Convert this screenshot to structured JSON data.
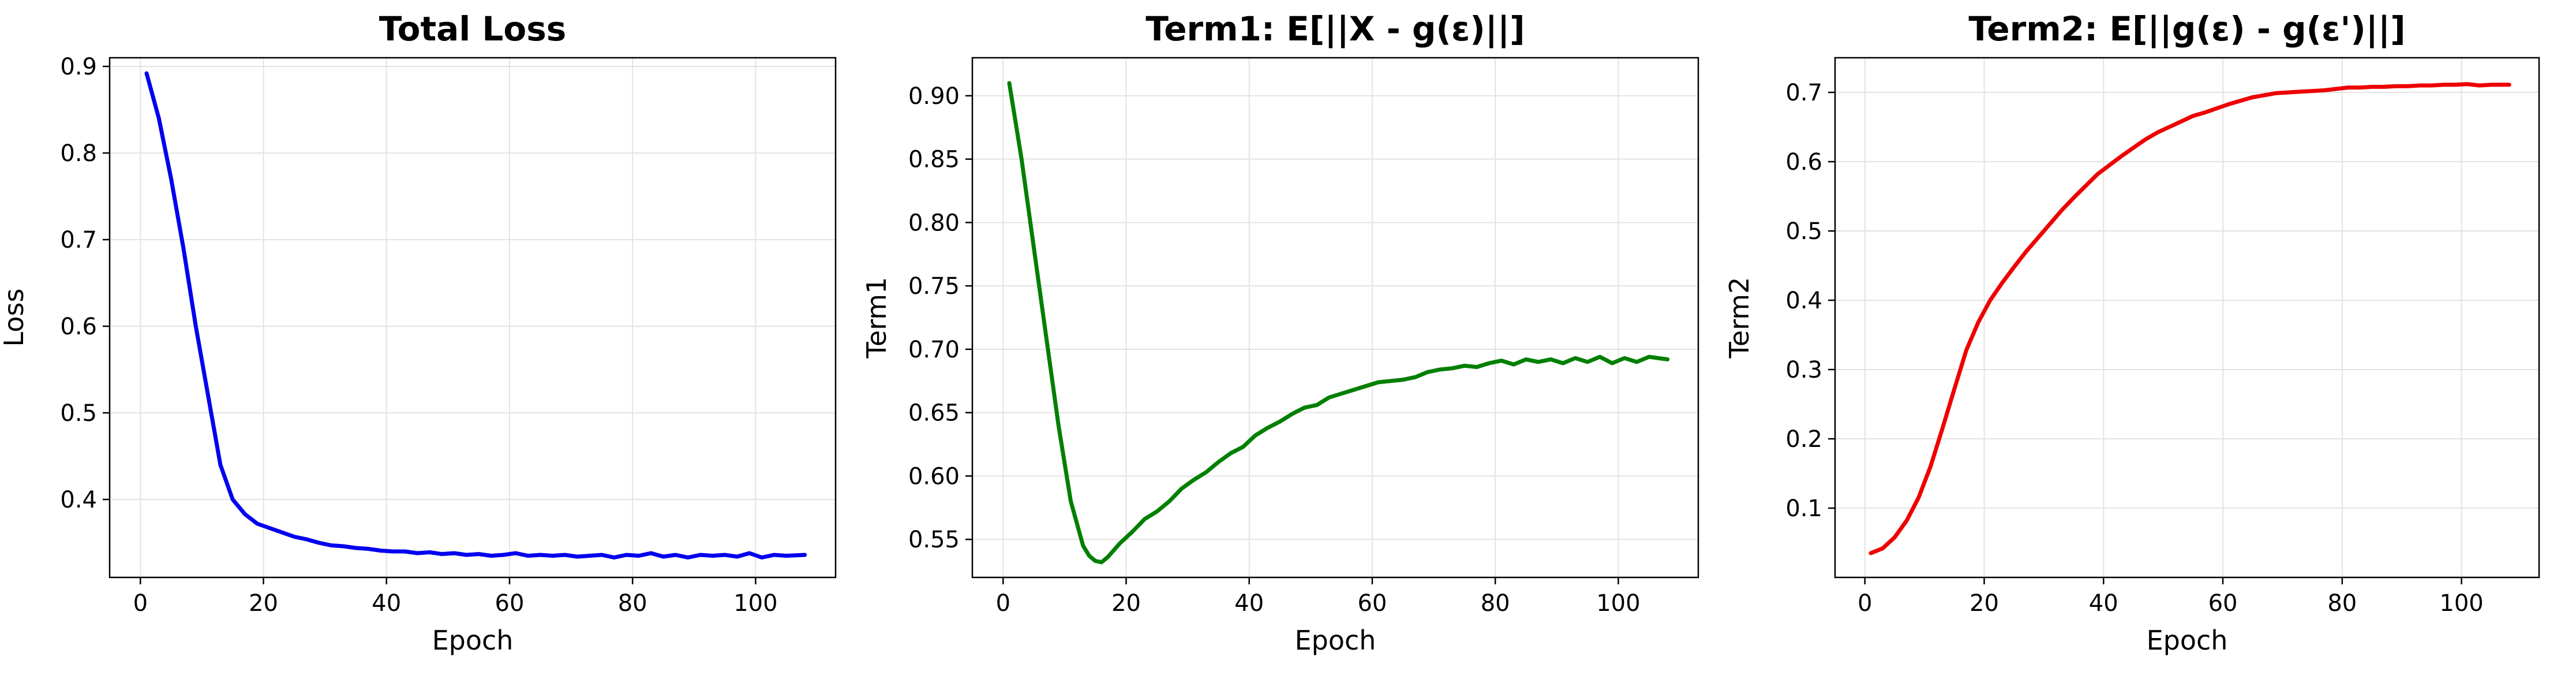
{
  "chart_data": [
    {
      "type": "line",
      "title": "Total Loss",
      "xlabel": "Epoch",
      "ylabel": "Loss",
      "xlim": [
        -5,
        113
      ],
      "ylim": [
        0.31,
        0.91
      ],
      "xticks": [
        0,
        20,
        40,
        60,
        80,
        100
      ],
      "yticks": [
        0.4,
        0.5,
        0.6,
        0.7,
        0.8,
        0.9
      ],
      "ytick_labels": [
        "0.4",
        "0.5",
        "0.6",
        "0.7",
        "0.8",
        "0.9"
      ],
      "grid": true,
      "series": [
        {
          "color": "#0000ee",
          "x": [
            1,
            3,
            5,
            7,
            9,
            11,
            13,
            15,
            17,
            19,
            21,
            23,
            25,
            27,
            29,
            31,
            33,
            35,
            37,
            39,
            41,
            43,
            45,
            47,
            49,
            51,
            53,
            55,
            57,
            59,
            61,
            63,
            65,
            67,
            69,
            71,
            73,
            75,
            77,
            79,
            81,
            83,
            85,
            87,
            89,
            91,
            93,
            95,
            97,
            99,
            101,
            103,
            105,
            108
          ],
          "y": [
            0.892,
            0.84,
            0.77,
            0.69,
            0.6,
            0.52,
            0.44,
            0.4,
            0.383,
            0.372,
            0.367,
            0.362,
            0.357,
            0.354,
            0.35,
            0.347,
            0.346,
            0.344,
            0.343,
            0.341,
            0.34,
            0.34,
            0.338,
            0.339,
            0.337,
            0.338,
            0.336,
            0.337,
            0.335,
            0.336,
            0.338,
            0.335,
            0.336,
            0.335,
            0.336,
            0.334,
            0.335,
            0.336,
            0.333,
            0.336,
            0.335,
            0.338,
            0.334,
            0.336,
            0.333,
            0.336,
            0.335,
            0.336,
            0.334,
            0.338,
            0.333,
            0.336,
            0.335,
            0.336
          ]
        }
      ]
    },
    {
      "type": "line",
      "title": "Term1: E[||X - g(ε)||]",
      "xlabel": "Epoch",
      "ylabel": "Term1",
      "xlim": [
        -5,
        113
      ],
      "ylim": [
        0.52,
        0.93
      ],
      "xticks": [
        0,
        20,
        40,
        60,
        80,
        100
      ],
      "yticks": [
        0.55,
        0.6,
        0.65,
        0.7,
        0.75,
        0.8,
        0.85,
        0.9
      ],
      "ytick_labels": [
        "0.55",
        "0.60",
        "0.65",
        "0.70",
        "0.75",
        "0.80",
        "0.85",
        "0.90"
      ],
      "grid": true,
      "series": [
        {
          "color": "#007f00",
          "x": [
            1,
            3,
            5,
            7,
            9,
            11,
            13,
            14,
            15,
            16,
            17,
            19,
            21,
            23,
            25,
            27,
            29,
            31,
            33,
            35,
            37,
            39,
            41,
            43,
            45,
            47,
            49,
            51,
            53,
            55,
            57,
            59,
            61,
            63,
            65,
            67,
            69,
            71,
            73,
            75,
            77,
            79,
            81,
            83,
            85,
            87,
            89,
            91,
            93,
            95,
            97,
            99,
            101,
            103,
            105,
            108
          ],
          "y": [
            0.91,
            0.85,
            0.78,
            0.71,
            0.64,
            0.58,
            0.545,
            0.537,
            0.533,
            0.532,
            0.536,
            0.547,
            0.556,
            0.566,
            0.572,
            0.58,
            0.59,
            0.597,
            0.603,
            0.611,
            0.618,
            0.623,
            0.632,
            0.638,
            0.643,
            0.649,
            0.654,
            0.656,
            0.662,
            0.665,
            0.668,
            0.671,
            0.674,
            0.675,
            0.676,
            0.678,
            0.682,
            0.684,
            0.685,
            0.687,
            0.686,
            0.689,
            0.691,
            0.688,
            0.692,
            0.69,
            0.692,
            0.689,
            0.693,
            0.69,
            0.694,
            0.689,
            0.693,
            0.69,
            0.694,
            0.692
          ]
        }
      ]
    },
    {
      "type": "line",
      "title": "Term2: E[||g(ε) - g(ε')||]",
      "xlabel": "Epoch",
      "ylabel": "Term2",
      "xlim": [
        -5,
        113
      ],
      "ylim": [
        0.0,
        0.75
      ],
      "xticks": [
        0,
        20,
        40,
        60,
        80,
        100
      ],
      "yticks": [
        0.1,
        0.2,
        0.3,
        0.4,
        0.5,
        0.6,
        0.7
      ],
      "ytick_labels": [
        "0.1",
        "0.2",
        "0.3",
        "0.4",
        "0.5",
        "0.6",
        "0.7"
      ],
      "grid": true,
      "series": [
        {
          "color": "#ee0000",
          "x": [
            1,
            3,
            5,
            7,
            9,
            11,
            13,
            15,
            17,
            19,
            21,
            23,
            25,
            27,
            29,
            31,
            33,
            35,
            37,
            39,
            41,
            43,
            45,
            47,
            49,
            51,
            53,
            55,
            57,
            59,
            61,
            63,
            65,
            67,
            69,
            71,
            73,
            75,
            77,
            79,
            81,
            83,
            85,
            87,
            89,
            91,
            93,
            95,
            97,
            99,
            101,
            103,
            105,
            108
          ],
          "y": [
            0.035,
            0.042,
            0.058,
            0.082,
            0.115,
            0.16,
            0.215,
            0.272,
            0.328,
            0.368,
            0.4,
            0.425,
            0.448,
            0.47,
            0.49,
            0.51,
            0.53,
            0.548,
            0.565,
            0.582,
            0.595,
            0.608,
            0.62,
            0.632,
            0.642,
            0.65,
            0.658,
            0.666,
            0.671,
            0.677,
            0.683,
            0.688,
            0.693,
            0.696,
            0.699,
            0.7,
            0.701,
            0.702,
            0.703,
            0.705,
            0.707,
            0.707,
            0.708,
            0.708,
            0.709,
            0.709,
            0.71,
            0.71,
            0.711,
            0.711,
            0.712,
            0.71,
            0.711,
            0.711
          ]
        }
      ]
    }
  ]
}
